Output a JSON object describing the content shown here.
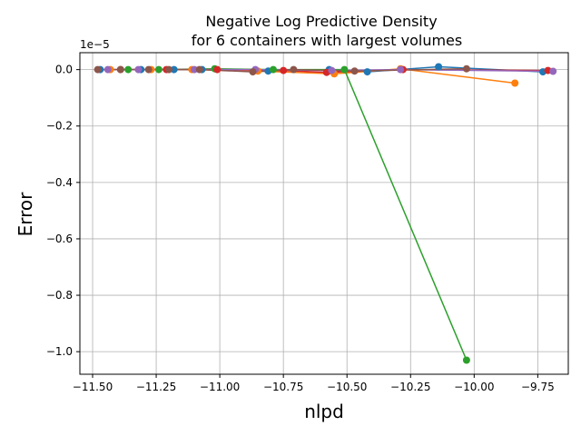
{
  "chart_data": {
    "type": "line",
    "title_line1": "Negative Log Predictive Density",
    "title_line2": "for 6 containers with largest volumes",
    "xlabel": "nlpd",
    "ylabel": "Error",
    "y_offset_label": "1e−5",
    "xlim": [
      -11.55,
      -9.63
    ],
    "ylim": [
      -1.08,
      0.06
    ],
    "y_scale_factor": 1e-05,
    "grid": true,
    "xticks": [
      -11.5,
      -11.25,
      -11.0,
      -10.75,
      -10.5,
      -10.25,
      -10.0,
      -9.75
    ],
    "xtick_labels": [
      "−11.50",
      "−11.25",
      "−11.00",
      "−10.75",
      "−10.50",
      "−10.25",
      "−10.00",
      "−9.75"
    ],
    "yticks": [
      0.0,
      -0.2,
      -0.4,
      -0.6,
      -0.8,
      -1.0
    ],
    "ytick_labels": [
      "0.0",
      "−0.2",
      "−0.4",
      "−0.6",
      "−0.8",
      "−1.0"
    ],
    "series": [
      {
        "color": "#1f77b4",
        "points": [
          [
            -11.47,
            0.0
          ],
          [
            -11.31,
            0.0
          ],
          [
            -11.18,
            0.0
          ],
          [
            -11.07,
            0.0
          ],
          [
            -10.81,
            -0.005
          ],
          [
            -10.57,
            0.0
          ],
          [
            -10.42,
            -0.008
          ],
          [
            -10.14,
            0.01
          ],
          [
            -9.73,
            -0.008
          ]
        ]
      },
      {
        "color": "#ff7f0e",
        "points": [
          [
            -11.43,
            0.0
          ],
          [
            -11.27,
            0.0
          ],
          [
            -11.11,
            0.0
          ],
          [
            -10.85,
            -0.005
          ],
          [
            -10.55,
            -0.015
          ],
          [
            -10.29,
            0.003
          ],
          [
            -9.84,
            -0.048
          ]
        ]
      },
      {
        "color": "#2ca02c",
        "points": [
          [
            -11.36,
            0.0
          ],
          [
            -11.24,
            0.0
          ],
          [
            -11.02,
            0.003
          ],
          [
            -10.79,
            0.0
          ],
          [
            -10.51,
            0.0
          ],
          [
            -10.03,
            -1.03
          ]
        ]
      },
      {
        "color": "#d62728",
        "points": [
          [
            -11.39,
            0.0
          ],
          [
            -11.21,
            0.0
          ],
          [
            -11.01,
            0.0
          ],
          [
            -10.75,
            -0.003
          ],
          [
            -10.58,
            -0.01
          ],
          [
            -10.28,
            0.0
          ],
          [
            -9.71,
            -0.003
          ]
        ]
      },
      {
        "color": "#9467bd",
        "points": [
          [
            -11.44,
            0.0
          ],
          [
            -11.32,
            0.0
          ],
          [
            -11.1,
            0.0
          ],
          [
            -10.86,
            0.0
          ],
          [
            -10.56,
            -0.003
          ],
          [
            -10.29,
            0.0
          ],
          [
            -9.69,
            -0.006
          ]
        ]
      },
      {
        "color": "#8c564b",
        "points": [
          [
            -11.48,
            0.0
          ],
          [
            -11.39,
            0.0
          ],
          [
            -11.28,
            0.0
          ],
          [
            -11.2,
            0.0
          ],
          [
            -11.08,
            0.0
          ],
          [
            -10.87,
            -0.008
          ],
          [
            -10.71,
            0.0
          ],
          [
            -10.47,
            -0.005
          ],
          [
            -10.03,
            0.003
          ]
        ]
      }
    ]
  }
}
